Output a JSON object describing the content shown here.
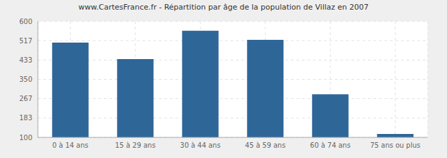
{
  "chart_data": {
    "type": "bar",
    "title": "www.CartesFrance.fr - Répartition par âge de la population de Villaz en 2007",
    "categories": [
      "0 à 14 ans",
      "15 à 29 ans",
      "30 à 44 ans",
      "45 à 59 ans",
      "60 à 74 ans",
      "75 ans ou plus"
    ],
    "values": [
      508,
      437,
      559,
      520,
      286,
      115
    ],
    "color": "#2f6698",
    "ylim": [
      100,
      600
    ],
    "yticks": [
      100,
      183,
      267,
      350,
      433,
      517,
      600
    ],
    "grid": true
  }
}
